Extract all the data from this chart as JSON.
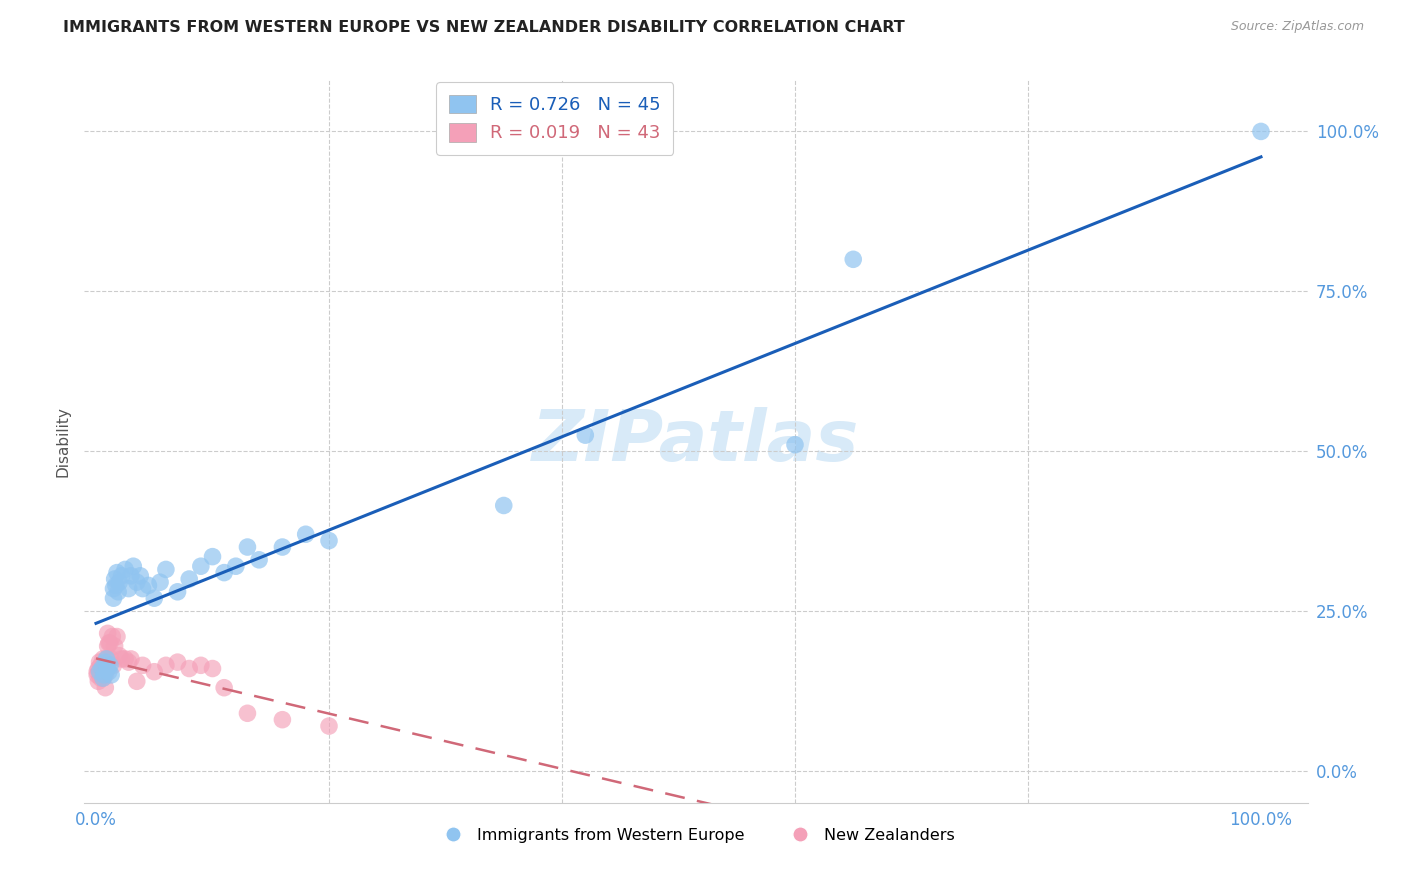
{
  "title": "IMMIGRANTS FROM WESTERN EUROPE VS NEW ZEALANDER DISABILITY CORRELATION CHART",
  "source": "Source: ZipAtlas.com",
  "ylabel_label": "Disability",
  "legend_blue_R": "0.726",
  "legend_blue_N": "45",
  "legend_blue_label": "Immigrants from Western Europe",
  "legend_pink_R": "0.019",
  "legend_pink_N": "43",
  "legend_pink_label": "New Zealanders",
  "blue_scatter_color": "#90c4f0",
  "pink_scatter_color": "#f4a0b8",
  "blue_line_color": "#1a5eb8",
  "pink_line_color": "#d06878",
  "watermark_text": "ZIPatlas",
  "watermark_color": "#d8eaf8",
  "grid_color": "#cccccc",
  "tick_color": "#5599dd",
  "title_color": "#222222",
  "source_color": "#999999",
  "ylabel_color": "#555555",
  "blue_x": [
    0.003,
    0.005,
    0.006,
    0.007,
    0.008,
    0.009,
    0.01,
    0.011,
    0.012,
    0.013,
    0.015,
    0.015,
    0.016,
    0.017,
    0.018,
    0.019,
    0.02,
    0.022,
    0.025,
    0.028,
    0.03,
    0.032,
    0.035,
    0.038,
    0.04,
    0.045,
    0.05,
    0.055,
    0.06,
    0.07,
    0.08,
    0.09,
    0.1,
    0.11,
    0.12,
    0.13,
    0.14,
    0.16,
    0.18,
    0.2,
    0.35,
    0.42,
    0.6,
    0.65,
    1.0
  ],
  "blue_y": [
    0.155,
    0.16,
    0.145,
    0.15,
    0.17,
    0.175,
    0.16,
    0.155,
    0.165,
    0.15,
    0.27,
    0.285,
    0.3,
    0.29,
    0.31,
    0.28,
    0.295,
    0.305,
    0.315,
    0.285,
    0.305,
    0.32,
    0.295,
    0.305,
    0.285,
    0.29,
    0.27,
    0.295,
    0.315,
    0.28,
    0.3,
    0.32,
    0.335,
    0.31,
    0.32,
    0.35,
    0.33,
    0.35,
    0.37,
    0.36,
    0.415,
    0.525,
    0.51,
    0.8,
    1.0
  ],
  "pink_x": [
    0.001,
    0.001,
    0.002,
    0.002,
    0.003,
    0.003,
    0.004,
    0.004,
    0.005,
    0.005,
    0.006,
    0.006,
    0.007,
    0.007,
    0.008,
    0.008,
    0.009,
    0.01,
    0.01,
    0.011,
    0.012,
    0.013,
    0.014,
    0.015,
    0.016,
    0.018,
    0.02,
    0.022,
    0.025,
    0.028,
    0.03,
    0.035,
    0.04,
    0.05,
    0.06,
    0.07,
    0.08,
    0.09,
    0.1,
    0.11,
    0.13,
    0.16,
    0.2
  ],
  "pink_y": [
    0.15,
    0.155,
    0.14,
    0.16,
    0.17,
    0.155,
    0.145,
    0.165,
    0.15,
    0.16,
    0.175,
    0.145,
    0.155,
    0.165,
    0.15,
    0.13,
    0.175,
    0.215,
    0.195,
    0.2,
    0.2,
    0.175,
    0.21,
    0.165,
    0.195,
    0.21,
    0.18,
    0.175,
    0.175,
    0.17,
    0.175,
    0.14,
    0.165,
    0.155,
    0.165,
    0.17,
    0.16,
    0.165,
    0.16,
    0.13,
    0.09,
    0.08,
    0.07
  ],
  "xlim": [
    -0.01,
    1.04
  ],
  "ylim": [
    -0.05,
    1.08
  ],
  "xticks": [
    0.0,
    0.2,
    0.4,
    0.6,
    0.8,
    1.0
  ],
  "xtick_labels": [
    "0.0%",
    "",
    "",
    "",
    "",
    "100.0%"
  ],
  "yticks": [
    0.0,
    0.25,
    0.5,
    0.75,
    1.0
  ],
  "ytick_labels": [
    "0.0%",
    "25.0%",
    "50.0%",
    "75.0%",
    "100.0%"
  ]
}
